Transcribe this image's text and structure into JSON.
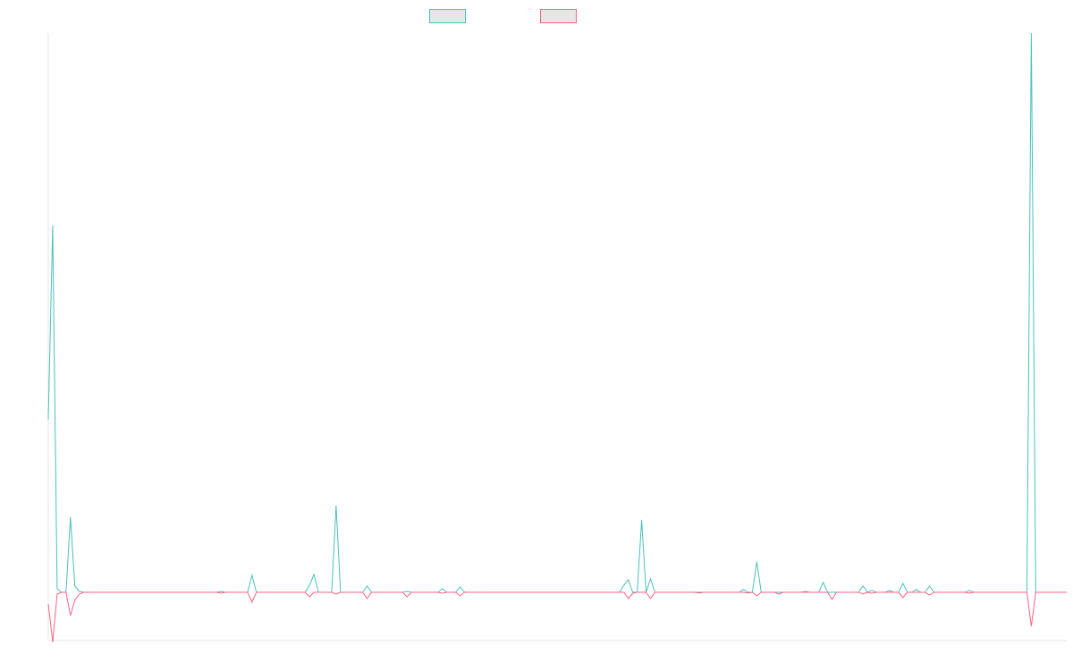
{
  "chart_data": {
    "type": "line",
    "legend": "top",
    "grid": false,
    "ylim": [
      -54,
      625
    ],
    "series": [
      {
        "color": "#4bc0c0",
        "values": [
          193,
          410,
          4,
          0,
          0,
          84,
          7,
          1,
          0,
          0,
          0,
          0,
          0,
          0,
          0,
          0,
          0,
          0,
          0,
          0,
          0,
          0,
          0,
          0,
          0,
          0,
          0,
          0,
          0,
          0,
          0,
          0,
          0,
          0,
          0,
          0,
          0,
          0,
          0,
          1,
          0,
          0,
          0,
          0,
          0,
          0,
          19,
          0,
          0,
          0,
          0,
          0,
          0,
          0,
          0,
          0,
          0,
          0,
          0,
          8,
          20,
          0,
          0,
          0,
          0,
          97,
          0,
          0,
          0,
          0,
          0,
          0,
          7,
          0,
          0,
          0,
          0,
          0,
          0,
          0,
          0,
          1,
          0,
          0,
          0,
          0,
          0,
          0,
          0,
          4,
          0,
          0,
          0,
          6,
          0,
          0,
          0,
          0,
          0,
          0,
          0,
          0,
          0,
          0,
          0,
          0,
          0,
          0,
          0,
          0,
          0,
          0,
          0,
          0,
          0,
          0,
          0,
          0,
          0,
          0,
          0,
          0,
          0,
          0,
          0,
          0,
          0,
          0,
          0,
          0,
          8,
          14,
          0,
          0,
          81,
          0,
          15,
          0,
          0,
          0,
          0,
          0,
          0,
          0,
          0,
          0,
          0,
          0,
          0,
          0,
          0,
          0,
          0,
          0,
          0,
          0,
          0,
          3,
          0,
          0,
          34,
          0,
          0,
          0,
          0,
          0,
          0,
          0,
          0,
          0,
          0,
          1,
          0,
          0,
          0,
          11,
          0,
          0,
          0,
          0,
          0,
          0,
          0,
          0,
          7,
          0,
          2,
          0,
          0,
          0,
          2,
          0,
          0,
          10,
          0,
          0,
          3,
          0,
          0,
          7,
          0,
          0,
          0,
          0,
          0,
          0,
          0,
          0,
          2,
          0,
          0,
          0,
          0,
          0,
          0,
          0,
          0,
          0,
          0,
          0,
          0,
          0,
          625,
          0,
          0,
          0,
          0,
          0,
          0,
          0,
          0
        ]
      },
      {
        "color": "#ff6384",
        "values": [
          -13,
          -56,
          -2,
          0,
          0,
          -26,
          -9,
          -2,
          0,
          0,
          0,
          0,
          0,
          0,
          0,
          0,
          0,
          0,
          0,
          0,
          0,
          0,
          0,
          0,
          0,
          0,
          0,
          0,
          0,
          0,
          0,
          0,
          0,
          0,
          0,
          0,
          0,
          0,
          0,
          -1,
          0,
          0,
          0,
          0,
          0,
          0,
          -11,
          0,
          0,
          0,
          0,
          0,
          0,
          0,
          0,
          0,
          0,
          0,
          0,
          -5,
          0,
          0,
          0,
          0,
          0,
          -2,
          0,
          0,
          0,
          0,
          0,
          0,
          -7,
          0,
          0,
          0,
          0,
          0,
          0,
          0,
          0,
          -5,
          0,
          0,
          0,
          0,
          0,
          0,
          0,
          -1,
          0,
          0,
          0,
          -4,
          0,
          0,
          0,
          0,
          0,
          0,
          0,
          0,
          0,
          0,
          0,
          0,
          0,
          0,
          0,
          0,
          0,
          0,
          0,
          0,
          0,
          0,
          0,
          0,
          0,
          0,
          0,
          0,
          0,
          0,
          0,
          0,
          0,
          0,
          0,
          0,
          0,
          -7,
          -1,
          0,
          0,
          0,
          -7,
          0,
          0,
          0,
          0,
          0,
          0,
          0,
          0,
          0,
          0,
          -1,
          0,
          0,
          0,
          0,
          0,
          0,
          0,
          0,
          0,
          0,
          -1,
          0,
          -4,
          0,
          0,
          0,
          0,
          -2,
          0,
          0,
          0,
          0,
          0,
          0,
          0,
          0,
          0,
          0,
          0,
          -8,
          0,
          0,
          0,
          0,
          0,
          0,
          -2,
          0,
          -1,
          0,
          0,
          0,
          0,
          0,
          0,
          -6,
          0,
          0,
          0,
          0,
          0,
          -3,
          0,
          0,
          0,
          0,
          0,
          0,
          0,
          0,
          -1,
          0,
          0,
          0,
          0,
          0,
          0,
          0,
          0,
          0,
          0,
          0,
          0,
          0,
          -38,
          0,
          0,
          0,
          0,
          0,
          0,
          0,
          0
        ]
      }
    ]
  }
}
